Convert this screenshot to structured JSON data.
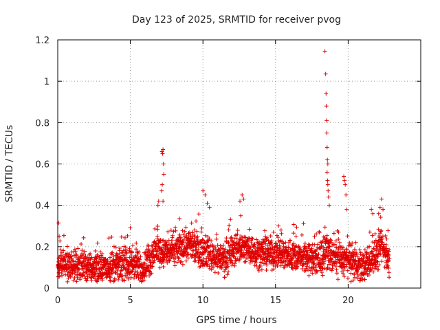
{
  "chart_data": {
    "type": "scatter",
    "title": "Day 123 of 2025, SRMTID for receiver pvog",
    "xlabel": "GPS time / hours",
    "ylabel": "SRMTID / TECUs",
    "xlim": [
      0,
      25
    ],
    "ylim": [
      0,
      1.2
    ],
    "xticks": [
      0,
      5,
      10,
      15,
      20
    ],
    "xtick_labels": [
      "0",
      "5",
      "10",
      "15",
      "20"
    ],
    "yticks": [
      0,
      0.2,
      0.4,
      0.6,
      0.8,
      1.0,
      1.2
    ],
    "ytick_labels": [
      "0",
      "0.2",
      "0.4",
      "0.6",
      "0.8",
      "1",
      "1.2"
    ],
    "grid": true,
    "marker": "+",
    "color": "#e00000",
    "series": [
      {
        "name": "SRMTID",
        "profile": [
          [
            0.0,
            0.11
          ],
          [
            0.5,
            0.13
          ],
          [
            1.0,
            0.1
          ],
          [
            2.0,
            0.1
          ],
          [
            3.0,
            0.09
          ],
          [
            4.0,
            0.11
          ],
          [
            5.0,
            0.12
          ],
          [
            5.8,
            0.09
          ],
          [
            6.3,
            0.13
          ],
          [
            6.8,
            0.19
          ],
          [
            7.3,
            0.17
          ],
          [
            8.0,
            0.18
          ],
          [
            9.0,
            0.21
          ],
          [
            9.5,
            0.19
          ],
          [
            10.0,
            0.18
          ],
          [
            11.0,
            0.15
          ],
          [
            11.5,
            0.14
          ],
          [
            12.0,
            0.17
          ],
          [
            12.5,
            0.2
          ],
          [
            13.0,
            0.19
          ],
          [
            14.0,
            0.17
          ],
          [
            15.0,
            0.17
          ],
          [
            16.0,
            0.16
          ],
          [
            17.0,
            0.15
          ],
          [
            18.0,
            0.13
          ],
          [
            18.5,
            0.18
          ],
          [
            19.0,
            0.15
          ],
          [
            19.5,
            0.14
          ],
          [
            20.0,
            0.13
          ],
          [
            21.0,
            0.1
          ],
          [
            22.0,
            0.16
          ],
          [
            22.3,
            0.2
          ],
          [
            22.8,
            0.14
          ]
        ],
        "spread": 0.045,
        "x_range": [
          0.0,
          22.85
        ],
        "step_hours": 0.009,
        "outliers": [
          [
            0.05,
            0.315
          ],
          [
            0.1,
            0.25
          ],
          [
            7.18,
            0.66
          ],
          [
            7.22,
            0.65
          ],
          [
            7.25,
            0.67
          ],
          [
            7.28,
            0.6
          ],
          [
            7.3,
            0.55
          ],
          [
            7.2,
            0.5
          ],
          [
            7.15,
            0.47
          ],
          [
            7.25,
            0.42
          ],
          [
            6.95,
            0.42
          ],
          [
            6.9,
            0.4
          ],
          [
            10.0,
            0.47
          ],
          [
            10.15,
            0.45
          ],
          [
            10.3,
            0.41
          ],
          [
            10.45,
            0.39
          ],
          [
            12.55,
            0.42
          ],
          [
            12.7,
            0.45
          ],
          [
            12.8,
            0.43
          ],
          [
            12.6,
            0.35
          ],
          [
            18.4,
            1.145
          ],
          [
            18.45,
            1.035
          ],
          [
            18.48,
            0.94
          ],
          [
            18.5,
            0.88
          ],
          [
            18.52,
            0.81
          ],
          [
            18.53,
            0.75
          ],
          [
            18.55,
            0.68
          ],
          [
            18.57,
            0.62
          ],
          [
            18.6,
            0.6
          ],
          [
            18.55,
            0.56
          ],
          [
            18.58,
            0.52
          ],
          [
            18.6,
            0.5
          ],
          [
            18.62,
            0.47
          ],
          [
            18.65,
            0.44
          ],
          [
            18.7,
            0.4
          ],
          [
            19.7,
            0.54
          ],
          [
            19.75,
            0.52
          ],
          [
            19.8,
            0.5
          ],
          [
            19.85,
            0.45
          ],
          [
            19.9,
            0.38
          ],
          [
            22.3,
            0.43
          ],
          [
            22.2,
            0.39
          ],
          [
            22.4,
            0.38
          ],
          [
            22.1,
            0.36
          ],
          [
            21.6,
            0.38
          ],
          [
            21.7,
            0.36
          ]
        ]
      }
    ]
  }
}
